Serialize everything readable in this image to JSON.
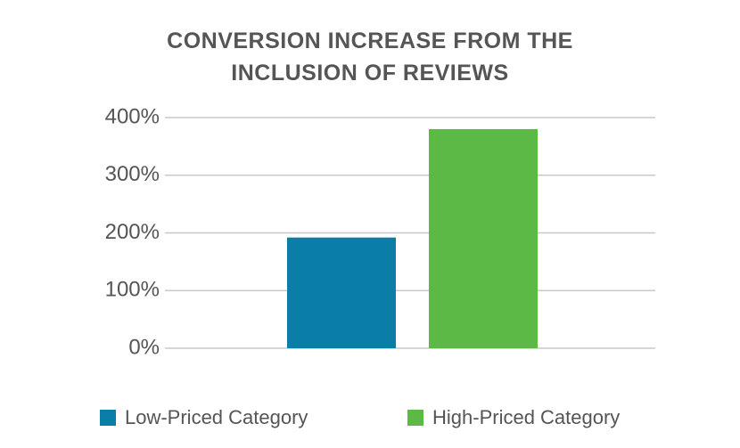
{
  "chart_data": {
    "type": "bar",
    "title": "CONVERSION INCREASE FROM THE INCLUSION OF REVIEWS",
    "series": [
      {
        "name": "Low-Priced Category",
        "color": "#0a7ea6",
        "values": [
          192
        ]
      },
      {
        "name": "High-Priced Category",
        "color": "#5cb946",
        "values": [
          380
        ]
      }
    ],
    "ylim": [
      0,
      400
    ],
    "yticks": [
      {
        "value": 0,
        "label": "0%"
      },
      {
        "value": 100,
        "label": "100%"
      },
      {
        "value": 200,
        "label": "200%"
      },
      {
        "value": 300,
        "label": "300%"
      },
      {
        "value": 400,
        "label": "400%"
      }
    ],
    "grid": true,
    "legend": "bottom"
  }
}
